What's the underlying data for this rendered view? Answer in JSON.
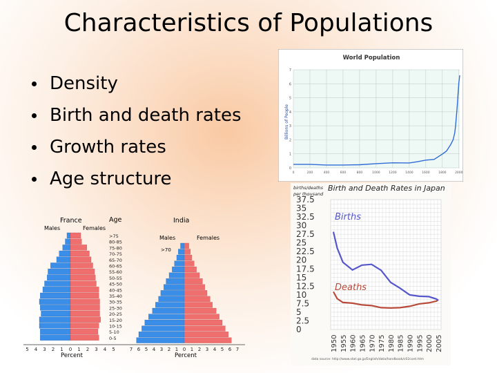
{
  "title": "Characteristics of Populations",
  "bullets": [
    "Density",
    "Birth and death rates",
    "Growth rates",
    "Age structure"
  ],
  "world_population": {
    "title": "World Population",
    "ylabel": "Billions of People",
    "yticks": [
      "0",
      "1",
      "2",
      "3",
      "4",
      "5",
      "6",
      "7"
    ],
    "xticks": [
      "0",
      "200",
      "400",
      "600",
      "800",
      "1000",
      "1200",
      "1400",
      "1600",
      "1800",
      "2000"
    ],
    "line_color": "#2f6bd6"
  },
  "pyramid_france": {
    "title": "France",
    "age_header": "Age",
    "males_label": "Males",
    "females_label": "Females",
    "age_labels": [
      ">75",
      "80-85",
      "75-80",
      "70-75",
      "65-70",
      "60-65",
      "55-60",
      "50-55",
      "45-50",
      "40-45",
      "35-40",
      "30-35",
      "25-30",
      "20-25",
      "15-20",
      "10-15",
      "5-10",
      "0-5"
    ],
    "males": [
      0.4,
      0.6,
      0.9,
      1.3,
      1.6,
      2.3,
      2.6,
      2.7,
      3.0,
      3.2,
      3.5,
      3.6,
      3.5,
      3.4,
      3.6,
      3.6,
      3.5,
      3.5
    ],
    "females": [
      1.2,
      1.3,
      1.9,
      2.2,
      2.4,
      2.6,
      2.8,
      2.9,
      3.0,
      3.3,
      3.3,
      3.4,
      3.4,
      3.4,
      3.5,
      3.3,
      3.2,
      3.3
    ],
    "xticks": [
      "5",
      "4",
      "3",
      "2",
      "1",
      "0",
      "1",
      "2",
      "3",
      "4",
      "5"
    ],
    "xlabel": "Percent"
  },
  "pyramid_india": {
    "title": "India",
    "males_label": "Males",
    "females_label": "Females",
    "top_age_label": ">70",
    "males": [
      0.5,
      0.8,
      1.0,
      1.3,
      1.6,
      2.0,
      2.4,
      2.7,
      3.1,
      3.4,
      3.8,
      4.2,
      4.7,
      5.2,
      5.6,
      6.0,
      6.3
    ],
    "females": [
      0.6,
      0.8,
      1.0,
      1.3,
      1.6,
      2.0,
      2.4,
      2.7,
      3.0,
      3.4,
      3.7,
      4.2,
      4.6,
      5.0,
      5.4,
      5.8,
      6.2
    ],
    "xticks": [
      "7",
      "6",
      "5",
      "4",
      "3",
      "2",
      "1",
      "0",
      "1",
      "2",
      "3",
      "4",
      "5",
      "6",
      "7"
    ],
    "xlabel": "Percent"
  },
  "japan_rates": {
    "title": "Birth and Death Rates in Japan",
    "yunit": "births/deaths per thousand",
    "yticks": [
      "37.5",
      "35",
      "32.5",
      "30",
      "27.5",
      "25",
      "22.5",
      "20",
      "17.5",
      "15",
      "12.5",
      "10",
      "7.5",
      "5",
      "2.5",
      "0"
    ],
    "xticks": [
      "1950",
      "1955",
      "1960",
      "1965",
      "1970",
      "1975",
      "1980",
      "1985",
      "1990",
      "1995",
      "2000",
      "2005"
    ],
    "births_label": "Births",
    "deaths_label": "Deaths",
    "source": "data source: http://www.stat.go.jp/English/data/handbook/c02cont.htm",
    "births_color": "#5555cc",
    "deaths_color": "#b84a3a"
  },
  "chart_data": [
    {
      "type": "line",
      "title": "World Population",
      "ylabel": "Billions of People",
      "xlim": [
        0,
        2010
      ],
      "ylim": [
        0,
        7
      ],
      "x": [
        0,
        200,
        400,
        600,
        800,
        1000,
        1200,
        1400,
        1500,
        1600,
        1700,
        1800,
        1850,
        1900,
        1930,
        1950,
        1960,
        1970,
        1980,
        1990,
        2000,
        2010
      ],
      "y": [
        0.25,
        0.25,
        0.2,
        0.2,
        0.22,
        0.3,
        0.36,
        0.35,
        0.44,
        0.55,
        0.6,
        0.98,
        1.2,
        1.65,
        2.0,
        2.5,
        3.0,
        3.7,
        4.4,
        5.3,
        6.1,
        6.6
      ]
    },
    {
      "type": "line",
      "title": "Birth and Death Rates in Japan",
      "ylim": [
        0,
        37.5
      ],
      "x": [
        1950,
        1952,
        1955,
        1960,
        1965,
        1970,
        1975,
        1980,
        1985,
        1990,
        1995,
        2000,
        2004,
        2005
      ],
      "series": [
        {
          "name": "Births",
          "values": [
            28.2,
            23.5,
            19.4,
            17.2,
            18.6,
            18.8,
            17.1,
            13.6,
            11.9,
            10.0,
            9.6,
            9.5,
            8.8,
            8.4
          ]
        },
        {
          "name": "Deaths",
          "values": [
            10.9,
            8.9,
            7.8,
            7.6,
            7.1,
            6.9,
            6.3,
            6.2,
            6.3,
            6.7,
            7.4,
            7.7,
            8.2,
            8.6
          ]
        }
      ]
    }
  ]
}
